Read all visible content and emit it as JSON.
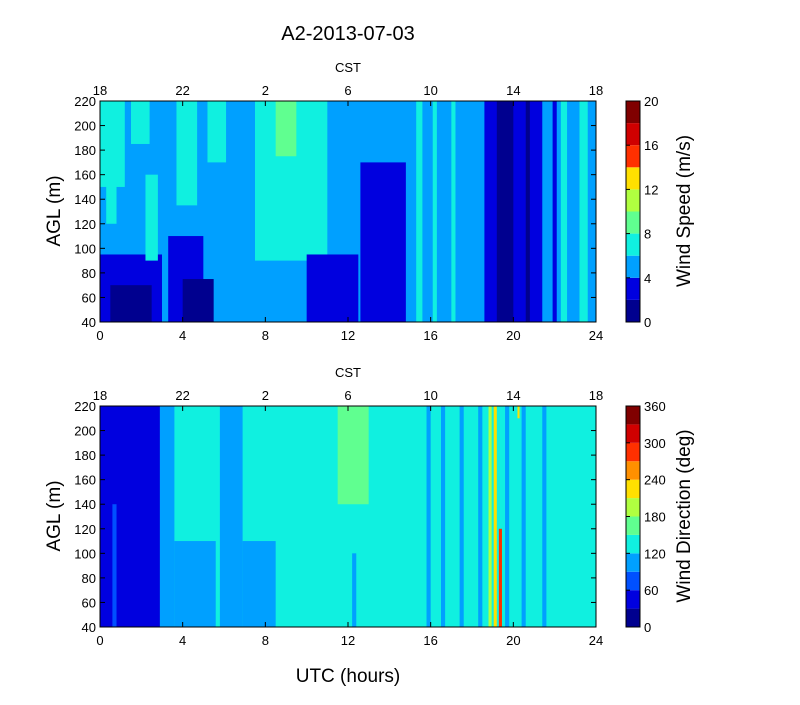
{
  "figure_title": "A2-2013-07-03",
  "xlabel": "UTC (hours)",
  "top_axis_label": "CST",
  "colors": {
    "jet": [
      "#00008f",
      "#0000df",
      "#0050ff",
      "#00a0ff",
      "#10f0e0",
      "#60ff90",
      "#b0ff40",
      "#ffe000",
      "#ff9000",
      "#ff3000",
      "#d00000",
      "#800000"
    ]
  },
  "chart_data": [
    {
      "type": "heatmap",
      "name": "wind-speed",
      "ylabel": "AGL (m)",
      "colorbar_label": "Wind Speed (m/s)",
      "xlim": [
        0,
        24
      ],
      "ylim": [
        40,
        220
      ],
      "x_ticks": [
        "0",
        "4",
        "8",
        "12",
        "16",
        "20",
        "24"
      ],
      "y_ticks": [
        "40",
        "60",
        "80",
        "100",
        "120",
        "140",
        "160",
        "180",
        "200",
        "220"
      ],
      "top_ticks": [
        "18",
        "22",
        "2",
        "6",
        "10",
        "14",
        "18"
      ],
      "colorbar_range": [
        0,
        20
      ],
      "colorbar_ticks": [
        "0",
        "4",
        "8",
        "12",
        "16",
        "20"
      ],
      "levels": [
        0,
        2,
        4,
        6,
        8,
        10,
        12,
        14,
        16,
        18,
        20
      ],
      "background_value": 5,
      "regions": [
        {
          "x": [
            0,
            3.0
          ],
          "y": [
            40,
            95
          ],
          "value": 3
        },
        {
          "x": [
            0.5,
            2.5
          ],
          "y": [
            40,
            70
          ],
          "value": 1
        },
        {
          "x": [
            0,
            1.2
          ],
          "y": [
            150,
            220
          ],
          "value": 7
        },
        {
          "x": [
            0.3,
            0.8
          ],
          "y": [
            120,
            220
          ],
          "value": 7
        },
        {
          "x": [
            1.5,
            2.4
          ],
          "y": [
            185,
            220
          ],
          "value": 7
        },
        {
          "x": [
            2.2,
            2.8
          ],
          "y": [
            90,
            160
          ],
          "value": 7
        },
        {
          "x": [
            3.3,
            5.0
          ],
          "y": [
            40,
            110
          ],
          "value": 3
        },
        {
          "x": [
            4.0,
            5.5
          ],
          "y": [
            40,
            75
          ],
          "value": 1
        },
        {
          "x": [
            3.7,
            4.7
          ],
          "y": [
            135,
            220
          ],
          "value": 7
        },
        {
          "x": [
            5.2,
            6.1
          ],
          "y": [
            170,
            220
          ],
          "value": 7
        },
        {
          "x": [
            7.5,
            11.0
          ],
          "y": [
            90,
            220
          ],
          "value": 7
        },
        {
          "x": [
            8.5,
            9.5
          ],
          "y": [
            175,
            220
          ],
          "value": 9
        },
        {
          "x": [
            10.0,
            12.5
          ],
          "y": [
            40,
            95
          ],
          "value": 3
        },
        {
          "x": [
            12.6,
            14.8
          ],
          "y": [
            40,
            170
          ],
          "value": 3
        },
        {
          "x": [
            15.3,
            15.6
          ],
          "y": [
            40,
            220
          ],
          "value": 7
        },
        {
          "x": [
            16.1,
            16.3
          ],
          "y": [
            40,
            220
          ],
          "value": 7
        },
        {
          "x": [
            17.0,
            17.2
          ],
          "y": [
            40,
            220
          ],
          "value": 7
        },
        {
          "x": [
            18.6,
            21.4
          ],
          "y": [
            40,
            220
          ],
          "value": 3
        },
        {
          "x": [
            19.2,
            20.0
          ],
          "y": [
            40,
            220
          ],
          "value": 1
        },
        {
          "x": [
            20.6,
            20.8
          ],
          "y": [
            40,
            220
          ],
          "value": 1
        },
        {
          "x": [
            22.3,
            22.6
          ],
          "y": [
            40,
            220
          ],
          "value": 7
        },
        {
          "x": [
            23.2,
            23.6
          ],
          "y": [
            40,
            220
          ],
          "value": 7
        },
        {
          "x": [
            21.9,
            22.1
          ],
          "y": [
            40,
            220
          ],
          "value": 3
        }
      ]
    },
    {
      "type": "heatmap",
      "name": "wind-direction",
      "ylabel": "AGL (m)",
      "colorbar_label": "Wind Direction (deg)",
      "xlim": [
        0,
        24
      ],
      "ylim": [
        40,
        220
      ],
      "x_ticks": [
        "0",
        "4",
        "8",
        "12",
        "16",
        "20",
        "24"
      ],
      "y_ticks": [
        "40",
        "60",
        "80",
        "100",
        "120",
        "140",
        "160",
        "180",
        "200",
        "220"
      ],
      "top_ticks": [
        "18",
        "22",
        "2",
        "6",
        "10",
        "14",
        "18"
      ],
      "colorbar_range": [
        0,
        360
      ],
      "colorbar_ticks": [
        "0",
        "60",
        "120",
        "180",
        "240",
        "300",
        "360"
      ],
      "levels": [
        0,
        30,
        60,
        90,
        120,
        150,
        180,
        210,
        240,
        270,
        300,
        330,
        360
      ],
      "background_value": 135,
      "regions": [
        {
          "x": [
            0,
            2.9
          ],
          "y": [
            40,
            220
          ],
          "value": 45
        },
        {
          "x": [
            0.6,
            0.8
          ],
          "y": [
            40,
            140
          ],
          "value": 75
        },
        {
          "x": [
            2.9,
            3.6
          ],
          "y": [
            40,
            220
          ],
          "value": 105
        },
        {
          "x": [
            3.6,
            5.6
          ],
          "y": [
            40,
            110
          ],
          "value": 105
        },
        {
          "x": [
            5.8,
            6.9
          ],
          "y": [
            40,
            220
          ],
          "value": 105
        },
        {
          "x": [
            6.9,
            8.5
          ],
          "y": [
            40,
            110
          ],
          "value": 105
        },
        {
          "x": [
            11.5,
            13.0
          ],
          "y": [
            140,
            220
          ],
          "value": 165
        },
        {
          "x": [
            12.2,
            12.4
          ],
          "y": [
            40,
            100
          ],
          "value": 105
        },
        {
          "x": [
            15.8,
            16.0
          ],
          "y": [
            40,
            220
          ],
          "value": 105
        },
        {
          "x": [
            16.5,
            16.7
          ],
          "y": [
            40,
            220
          ],
          "value": 105
        },
        {
          "x": [
            17.4,
            17.6
          ],
          "y": [
            40,
            220
          ],
          "value": 105
        },
        {
          "x": [
            18.3,
            18.5
          ],
          "y": [
            40,
            220
          ],
          "value": 105
        },
        {
          "x": [
            18.8,
            18.95
          ],
          "y": [
            40,
            220
          ],
          "value": 195
        },
        {
          "x": [
            19.05,
            19.2
          ],
          "y": [
            40,
            220
          ],
          "value": 225
        },
        {
          "x": [
            19.3,
            19.45
          ],
          "y": [
            40,
            120
          ],
          "value": 285
        },
        {
          "x": [
            19.6,
            19.8
          ],
          "y": [
            40,
            220
          ],
          "value": 105
        },
        {
          "x": [
            20.4,
            20.6
          ],
          "y": [
            40,
            220
          ],
          "value": 105
        },
        {
          "x": [
            21.4,
            21.6
          ],
          "y": [
            40,
            220
          ],
          "value": 105
        },
        {
          "x": [
            20.2,
            20.3
          ],
          "y": [
            210,
            220
          ],
          "value": 225
        }
      ]
    }
  ]
}
